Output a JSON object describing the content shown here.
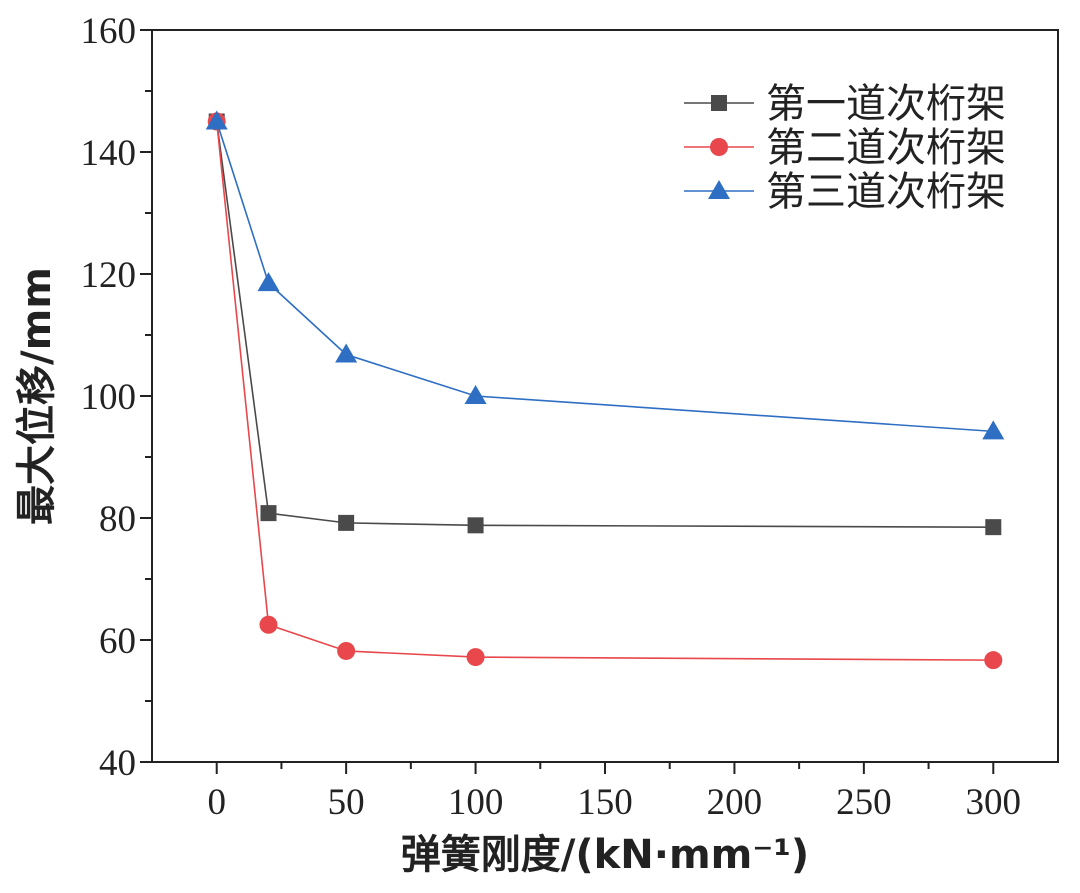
{
  "chart_data": {
    "type": "line",
    "title": "",
    "xlabel": "弹簧刚度/(kN·mm⁻¹)",
    "ylabel": "最大位移/mm",
    "xlim": [
      -25,
      325
    ],
    "ylim": [
      40,
      160
    ],
    "xticks": [
      0,
      50,
      100,
      150,
      200,
      250,
      300
    ],
    "yticks": [
      40,
      60,
      80,
      100,
      120,
      140,
      160
    ],
    "xtick_labels": [
      "0",
      "50",
      "100",
      "150",
      "200",
      "250",
      "300"
    ],
    "ytick_labels": [
      "40",
      "60",
      "80",
      "100",
      "120",
      "140",
      "160"
    ],
    "legend_position": "top-right",
    "grid": false,
    "x": [
      0,
      20,
      50,
      100,
      300
    ],
    "series": [
      {
        "name": "第一道次桁架",
        "marker": "square",
        "color": "#4a4a4a",
        "values": [
          145,
          80.8,
          79.2,
          78.8,
          78.5
        ]
      },
      {
        "name": "第二道次桁架",
        "marker": "circle",
        "color": "#e8474b",
        "values": [
          145,
          62.5,
          58.2,
          57.2,
          56.7
        ]
      },
      {
        "name": "第三道次桁架",
        "marker": "triangle",
        "color": "#2e6fc4",
        "values": [
          145,
          118.5,
          106.8,
          100,
          94.2
        ]
      }
    ]
  }
}
